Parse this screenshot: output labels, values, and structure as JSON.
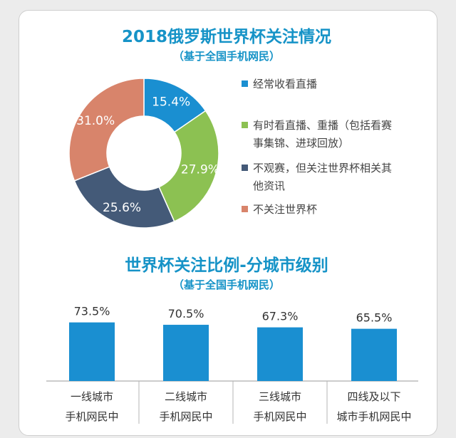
{
  "charts": [
    {
      "title": "2018俄罗斯世界杯关注情况",
      "subtitle": "（基于全国手机网民）"
    },
    {
      "title": "世界杯关注比例-分城市级别",
      "subtitle": "（基于全国手机网民）"
    }
  ],
  "chart_data": [
    {
      "type": "pie",
      "title": "2018俄罗斯世界杯关注情况",
      "subtitle": "（基于全国手机网民）",
      "donut": true,
      "legend": "right",
      "slices": [
        {
          "label_lines": [
            "经常收看直播"
          ],
          "value": 15.4,
          "display": "15.4%",
          "color": "#1a8fd1"
        },
        {
          "label_lines": [
            "有时看直播、重播（包括看赛",
            "事集锦、进球回放）"
          ],
          "value": 27.9,
          "display": "27.9%",
          "color": "#8cc152"
        },
        {
          "label_lines": [
            "不观赛，但关注世界杯相关其",
            "他资讯"
          ],
          "value": 25.6,
          "display": "25.6%",
          "color": "#445a78"
        },
        {
          "label_lines": [
            "不关注世界杯"
          ],
          "value": 31.0,
          "display": "31.0%",
          "color": "#d8846b"
        }
      ]
    },
    {
      "type": "bar",
      "title": "世界杯关注比例-分城市级别",
      "subtitle": "（基于全国手机网民）",
      "categories": [
        [
          "一线城市",
          "手机网民中"
        ],
        [
          "二线城市",
          "手机网民中"
        ],
        [
          "三线城市",
          "手机网民中"
        ],
        [
          "四线及以下",
          "城市手机网民中"
        ]
      ],
      "values": [
        73.5,
        70.5,
        67.3,
        65.5
      ],
      "value_labels": [
        "73.5%",
        "70.5%",
        "67.3%",
        "65.5%"
      ],
      "color": "#1a8fd1",
      "grid": false,
      "y_axis_shown": false
    }
  ]
}
